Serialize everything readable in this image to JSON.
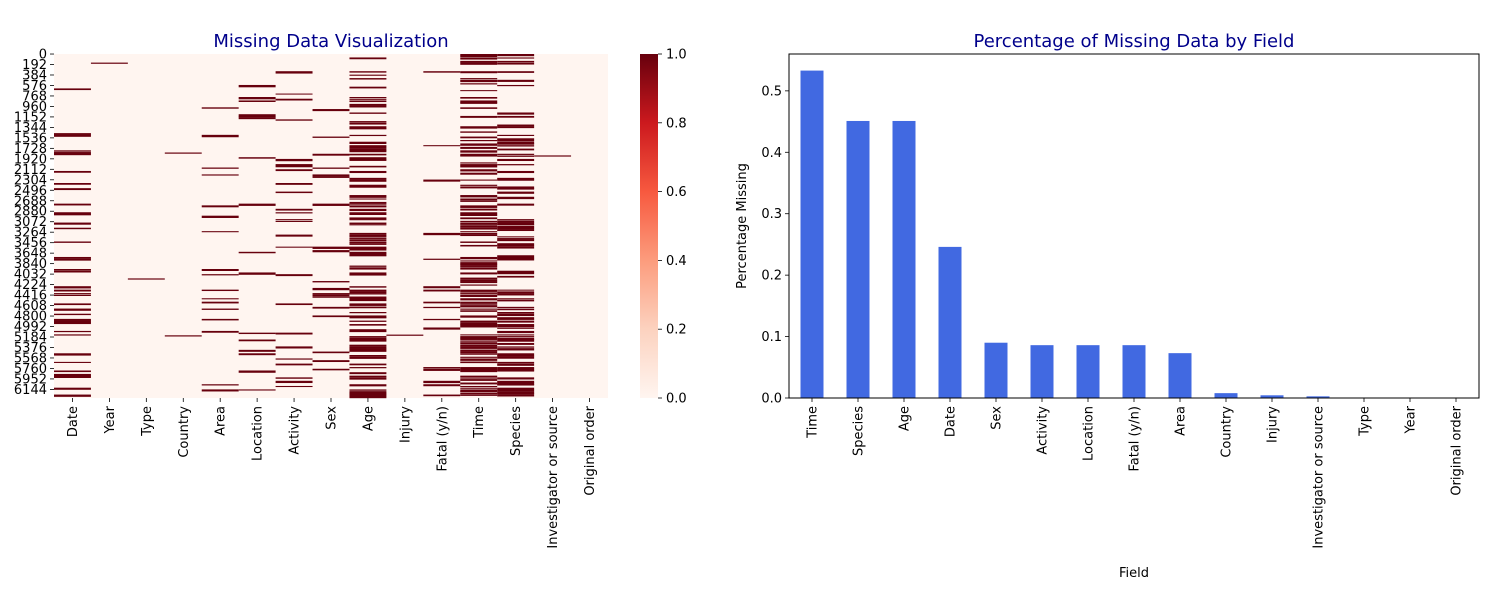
{
  "chart_data": [
    {
      "type": "heatmap",
      "title": "Missing Data Visualization",
      "title_color": "#00008b",
      "columns": [
        "Date",
        "Year",
        "Type",
        "Country",
        "Area",
        "Location",
        "Activity",
        "Sex",
        "Age",
        "Injury",
        "Fatal (y/n)",
        "Time",
        "Species",
        "Investigator or source",
        "Original order"
      ],
      "row_tick_labels": [
        "0",
        "192",
        "384",
        "576",
        "768",
        "960",
        "1152",
        "1344",
        "1536",
        "1728",
        "1920",
        "2112",
        "2304",
        "2496",
        "2688",
        "2880",
        "3072",
        "3264",
        "3456",
        "3648",
        "3840",
        "4032",
        "4224",
        "4416",
        "4608",
        "4800",
        "4992",
        "5184",
        "5376",
        "5568",
        "5760",
        "5952",
        "6144"
      ],
      "row_tick_step": 192,
      "n_rows": 6302,
      "missing_fraction": [
        0.246,
        0.0003,
        0.0007,
        0.0079,
        0.073,
        0.086,
        0.086,
        0.09,
        0.451,
        0.0044,
        0.086,
        0.533,
        0.451,
        0.0027,
        0.0
      ],
      "colormap": "Reds",
      "colormap_low": "#fff5f0",
      "colormap_high": "#67000d",
      "colorbar": {
        "ticks": [
          "0.0",
          "0.2",
          "0.4",
          "0.6",
          "0.8",
          "1.0"
        ],
        "range": [
          0,
          1
        ]
      }
    },
    {
      "type": "bar",
      "title": "Percentage of Missing Data by Field",
      "title_color": "#00008b",
      "bar_color": "#4169e1",
      "xlabel": "Field",
      "ylabel": "Percentage Missing",
      "categories": [
        "Time",
        "Species",
        "Age",
        "Date",
        "Sex",
        "Activity",
        "Location",
        "Fatal (y/n)",
        "Area",
        "Country",
        "Injury",
        "Investigator or source",
        "Type",
        "Year",
        "Original order"
      ],
      "values": [
        0.533,
        0.451,
        0.451,
        0.246,
        0.09,
        0.086,
        0.086,
        0.086,
        0.073,
        0.0079,
        0.0044,
        0.0027,
        0.0007,
        0.0003,
        0.0
      ],
      "ylim": [
        0,
        0.56
      ],
      "yticks": [
        "0.0",
        "0.1",
        "0.2",
        "0.3",
        "0.4",
        "0.5"
      ]
    }
  ]
}
